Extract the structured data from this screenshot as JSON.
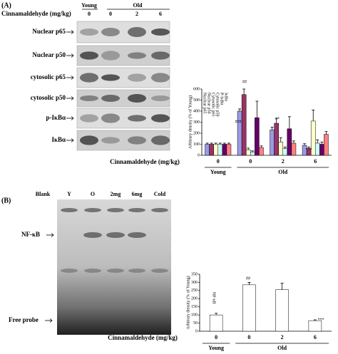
{
  "panel_a": {
    "label": "(A)",
    "treatment_label": "Cinnamaldehyde (mg/kg)",
    "groups": [
      "Young",
      "Old"
    ],
    "doses": [
      "0",
      "0",
      "2",
      "6"
    ],
    "blot_labels": [
      "Nuclear p65",
      "Nuclear p50",
      "cytosolic p65",
      "cytosolic p50",
      "p-IκBα",
      "IκBα"
    ],
    "chart": {
      "type": "bar",
      "y_label": "Arbitrary density (% of Young)",
      "x_label": "Cinnamaldehyde (mg/kg)",
      "categories": [
        "0",
        "0",
        "2",
        "6"
      ],
      "groups": [
        "Young",
        "Old"
      ],
      "ylim": [
        0,
        600
      ],
      "yticks": [
        0,
        100,
        200,
        300,
        400,
        500,
        600
      ],
      "series": [
        {
          "name": "Nuclear p65",
          "color": "#9a9ae6",
          "values": [
            100,
            400,
            230,
            90
          ],
          "errors": [
            10,
            20,
            25,
            15
          ]
        },
        {
          "name": "Nuclear p50",
          "color": "#993366",
          "values": [
            100,
            550,
            290,
            60
          ],
          "errors": [
            10,
            50,
            40,
            15
          ]
        },
        {
          "name": "Cytosolic p65",
          "color": "#ffffcc",
          "values": [
            100,
            50,
            120,
            310
          ],
          "errors": [
            10,
            15,
            40,
            100
          ]
        },
        {
          "name": "Cytosolic p50",
          "color": "#ccffff",
          "values": [
            100,
            30,
            60,
            110
          ],
          "errors": [
            10,
            10,
            15,
            30
          ]
        },
        {
          "name": "P-IκBα",
          "color": "#660066",
          "values": [
            100,
            340,
            240,
            100
          ],
          "errors": [
            10,
            150,
            110,
            20
          ]
        },
        {
          "name": "IκBα",
          "color": "#ff8080",
          "values": [
            100,
            70,
            110,
            190
          ],
          "errors": [
            10,
            15,
            20,
            25
          ]
        }
      ],
      "annotations": [
        "###",
        "##",
        "**",
        "***"
      ]
    }
  },
  "panel_b": {
    "label": "(B)",
    "lane_labels": [
      "Blank",
      "Y",
      "O",
      "2mg",
      "6mg",
      "Cold"
    ],
    "band_labels": [
      "NF-κB",
      "Free probe"
    ],
    "chart": {
      "type": "bar",
      "y_label": "Arbitrary density (% of Young)",
      "x_label": "Cinnamaldehyde (mg/kg)",
      "categories": [
        "0",
        "0",
        "2",
        "6"
      ],
      "groups": [
        "Young",
        "Old"
      ],
      "ylim": [
        0,
        350
      ],
      "yticks": [
        0,
        50,
        100,
        150,
        200,
        250,
        300,
        350
      ],
      "series": [
        {
          "name": "NF-κB",
          "color": "#ffffff",
          "values": [
            100,
            285,
            255,
            65
          ],
          "errors": [
            10,
            15,
            40,
            5
          ]
        }
      ],
      "annotations": [
        "##",
        "***"
      ]
    }
  }
}
